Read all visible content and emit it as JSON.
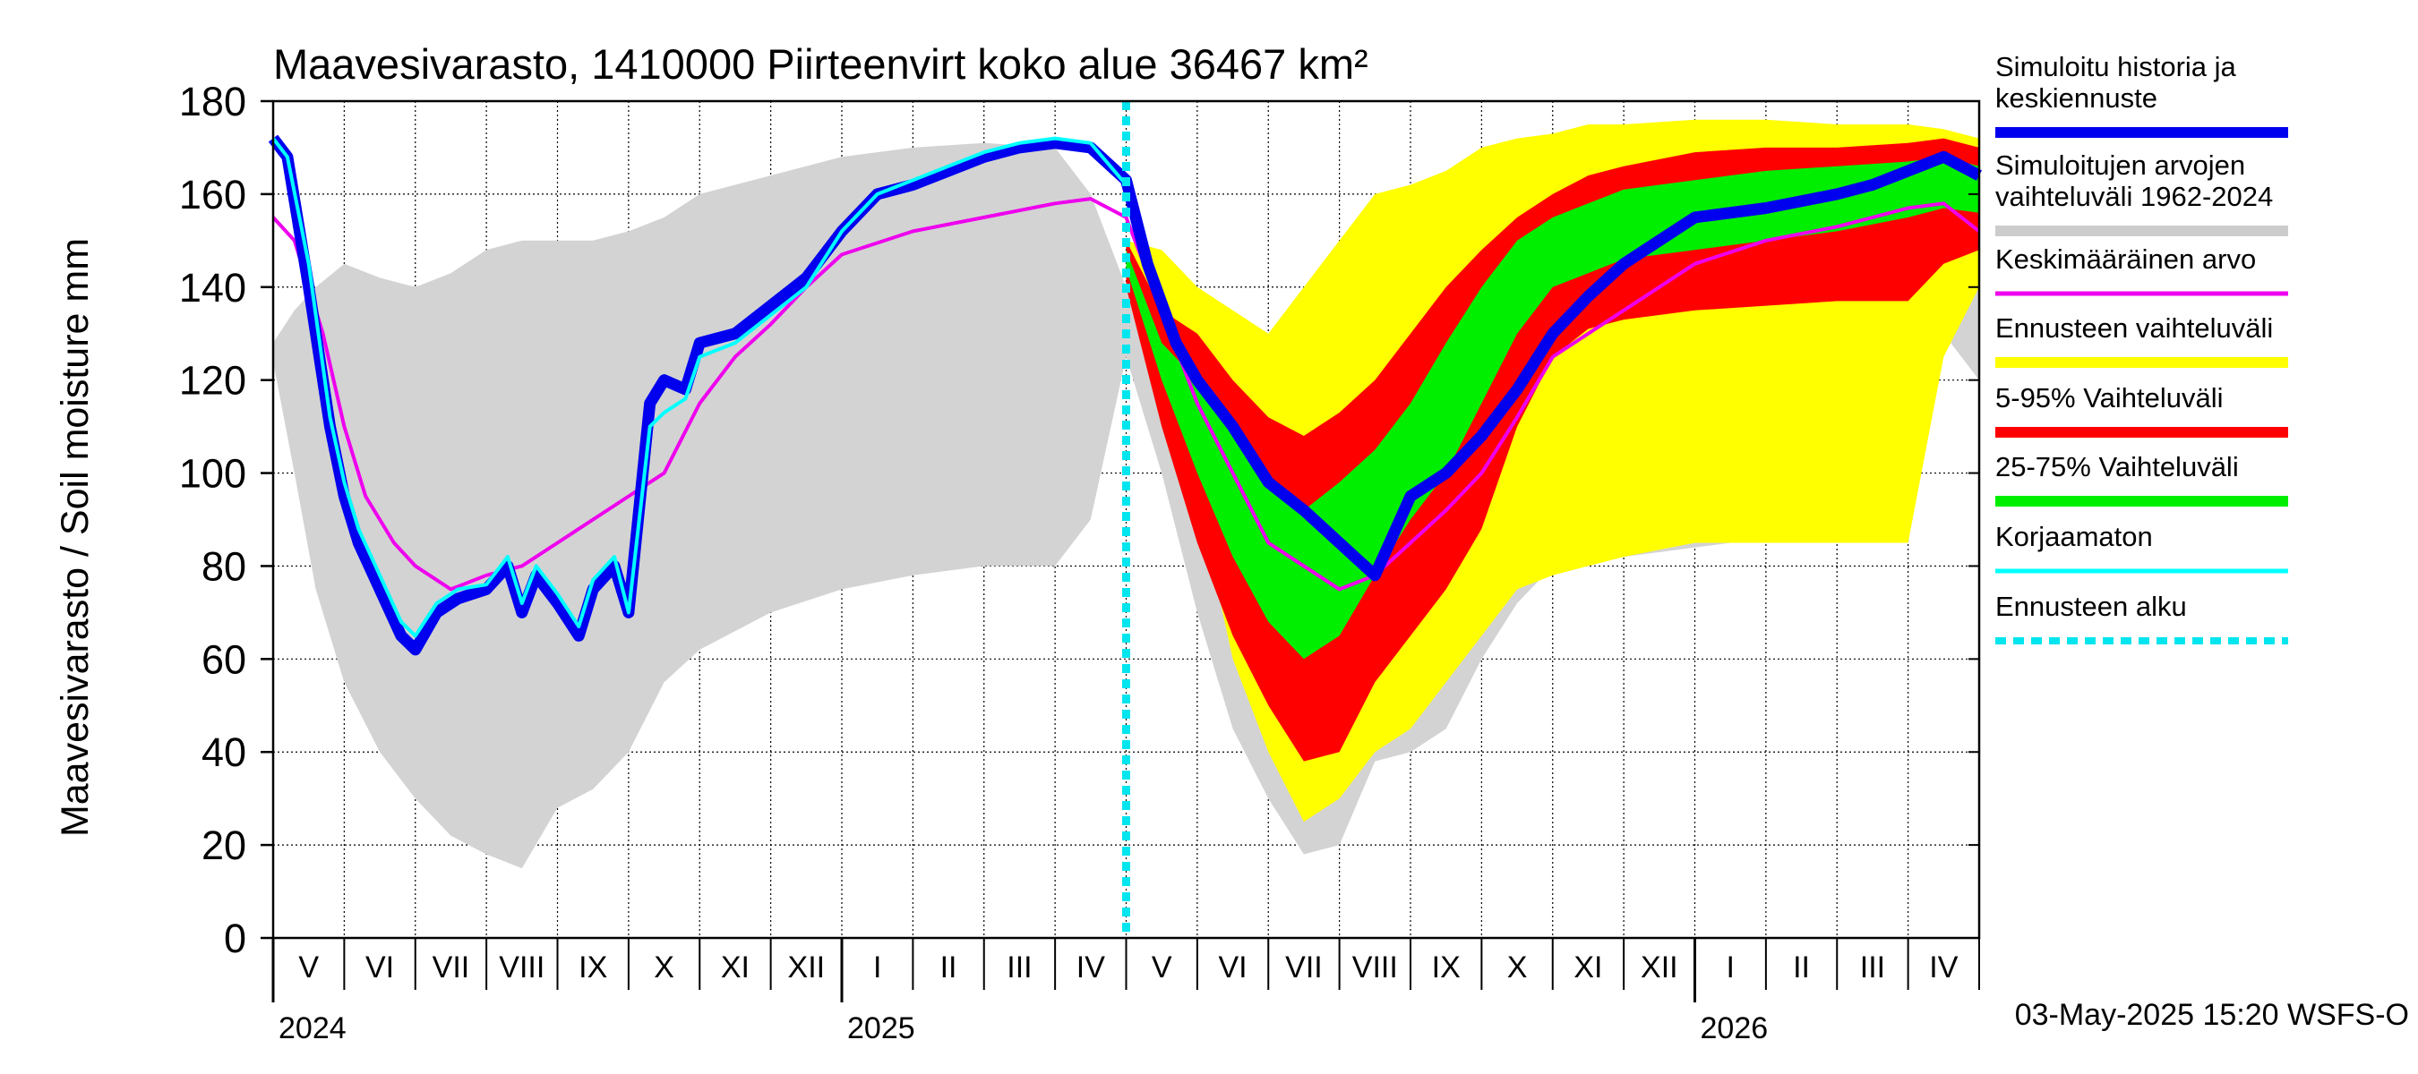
{
  "chart_data": {
    "type": "area",
    "title": "Maavesivarasto, 1410000 Piirteenvirt koko alue 36467 km²",
    "ylabel": "Maavesivarasto / Soil moisture   mm",
    "ylim": [
      0,
      180
    ],
    "yticks": [
      0,
      20,
      40,
      60,
      80,
      100,
      120,
      140,
      160,
      180
    ],
    "xlim": [
      0,
      24
    ],
    "month_labels": [
      "V",
      "VI",
      "VII",
      "VIII",
      "IX",
      "X",
      "XI",
      "XII",
      "I",
      "II",
      "III",
      "IV",
      "V",
      "VI",
      "VII",
      "VIII",
      "IX",
      "X",
      "XI",
      "XII",
      "I",
      "II",
      "III",
      "IV"
    ],
    "year_labels": [
      {
        "label": "2024",
        "at": 0
      },
      {
        "label": "2025",
        "at": 8
      },
      {
        "label": "2026",
        "at": 20
      }
    ],
    "forecast_start": 12,
    "grid": true,
    "legend_position": "right",
    "legend": [
      {
        "label": "Simuloitu historia ja keskiennuste",
        "color": "#0000ee",
        "kind": "line-thick"
      },
      {
        "label": "Simuloitujen arvojen vaihteluväli 1962-2024",
        "color": "#cccccc",
        "kind": "line-thick"
      },
      {
        "label": "Keskimääräinen arvo",
        "color": "#ee00ee",
        "kind": "line"
      },
      {
        "label": "Ennusteen vaihteluväli",
        "color": "#ffff00",
        "kind": "line-thick"
      },
      {
        "label": "5-95% Vaihteluväli",
        "color": "#ff0000",
        "kind": "line-thick"
      },
      {
        "label": "25-75% Vaihteluväli",
        "color": "#00ee00",
        "kind": "line-thick"
      },
      {
        "label": "Korjaamaton",
        "color": "#00ffff",
        "kind": "line"
      },
      {
        "label": "Ennusteen alku",
        "color": "#00e5ee",
        "kind": "dashed"
      }
    ],
    "series": {
      "history_range": {
        "name": "Simuloitujen arvojen vaihteluväli 1962-2024",
        "color": "#d3d3d3",
        "x": [
          0,
          0.3,
          0.6,
          1,
          1.5,
          2,
          2.5,
          3,
          3.5,
          4,
          4.5,
          5,
          5.5,
          6,
          7,
          8,
          9,
          10,
          11,
          11.5,
          12,
          12.5,
          13,
          13.5,
          14,
          14.5,
          15,
          15.5,
          16,
          16.5,
          17,
          17.5,
          18,
          19,
          20,
          21,
          22,
          22.5,
          23,
          23.5,
          24
        ],
        "upper": [
          128,
          135,
          140,
          145,
          142,
          140,
          143,
          148,
          150,
          150,
          150,
          152,
          155,
          160,
          164,
          168,
          170,
          171,
          170,
          160,
          140,
          140,
          135,
          120,
          115,
          118,
          125,
          130,
          140,
          150,
          155,
          160,
          164,
          167,
          168,
          169,
          169,
          168,
          167,
          167,
          168
        ],
        "lower": [
          124,
          100,
          75,
          55,
          40,
          30,
          22,
          18,
          15,
          28,
          32,
          40,
          55,
          62,
          70,
          75,
          78,
          80,
          80,
          90,
          125,
          100,
          70,
          45,
          30,
          18,
          20,
          38,
          40,
          45,
          60,
          72,
          80,
          82,
          84,
          86,
          88,
          92,
          110,
          130,
          120
        ]
      },
      "forecast_range": {
        "name": "Ennusteen vaihteluväli",
        "color": "#ffff00",
        "x": [
          12,
          12.5,
          13,
          13.5,
          14,
          14.5,
          15,
          15.5,
          16,
          16.5,
          17,
          17.5,
          18,
          18.5,
          19,
          20,
          21,
          22,
          23,
          23.5,
          24
        ],
        "upper": [
          150,
          148,
          140,
          135,
          130,
          140,
          150,
          160,
          162,
          165,
          170,
          172,
          173,
          175,
          175,
          176,
          176,
          175,
          175,
          174,
          172
        ],
        "lower": [
          143,
          120,
          95,
          60,
          40,
          25,
          30,
          40,
          45,
          55,
          65,
          75,
          78,
          80,
          82,
          85,
          85,
          85,
          85,
          125,
          140
        ]
      },
      "p5_95": {
        "name": "5-95% Vaihteluväli",
        "color": "#ff0000",
        "x": [
          12,
          12.5,
          13,
          13.5,
          14,
          14.5,
          15,
          15.5,
          16,
          16.5,
          17,
          17.5,
          18,
          18.5,
          19,
          20,
          21,
          22,
          23,
          23.5,
          24
        ],
        "upper": [
          150,
          135,
          130,
          120,
          112,
          108,
          113,
          120,
          130,
          140,
          148,
          155,
          160,
          164,
          166,
          169,
          170,
          170,
          171,
          172,
          170
        ],
        "lower": [
          140,
          110,
          85,
          65,
          50,
          38,
          40,
          55,
          65,
          75,
          88,
          110,
          125,
          131,
          133,
          135,
          136,
          137,
          137,
          145,
          148
        ]
      },
      "p25_75": {
        "name": "25-75% Vaihteluväli",
        "color": "#00ee00",
        "x": [
          12,
          12.5,
          13,
          13.5,
          14,
          14.5,
          15,
          15.5,
          16,
          16.5,
          17,
          17.5,
          18,
          18.5,
          19,
          20,
          21,
          22,
          23,
          23.5,
          24
        ],
        "upper": [
          148,
          128,
          120,
          108,
          98,
          92,
          98,
          105,
          115,
          128,
          140,
          150,
          155,
          158,
          161,
          163,
          165,
          166,
          167,
          168,
          166
        ],
        "lower": [
          144,
          120,
          100,
          82,
          68,
          60,
          65,
          78,
          90,
          100,
          115,
          130,
          140,
          143,
          146,
          148,
          150,
          152,
          155,
          157,
          156
        ]
      },
      "simulated": {
        "name": "Simuloitu historia ja keskiennuste",
        "color": "#0000ee",
        "x": [
          0,
          0.2,
          0.5,
          0.8,
          1,
          1.2,
          1.5,
          1.8,
          2,
          2.3,
          2.6,
          3,
          3.3,
          3.5,
          3.7,
          4,
          4.3,
          4.5,
          4.8,
          5,
          5.3,
          5.5,
          5.8,
          6,
          6.5,
          7,
          7.5,
          8,
          8.5,
          9,
          9.5,
          10,
          10.5,
          11,
          11.5,
          12,
          12.3,
          12.7,
          13,
          13.5,
          14,
          14.5,
          15,
          15.5,
          16,
          16.5,
          17,
          17.5,
          18,
          18.5,
          19,
          19.5,
          20,
          21,
          22,
          22.5,
          23,
          23.5,
          24
        ],
        "y": [
          172,
          168,
          140,
          110,
          95,
          85,
          75,
          65,
          62,
          70,
          73,
          75,
          80,
          70,
          78,
          72,
          65,
          75,
          80,
          70,
          115,
          120,
          118,
          128,
          130,
          136,
          142,
          152,
          160,
          162,
          165,
          168,
          170,
          171,
          170,
          163,
          145,
          128,
          120,
          110,
          98,
          92,
          85,
          78,
          95,
          100,
          108,
          118,
          130,
          138,
          145,
          150,
          155,
          157,
          160,
          162,
          165,
          168,
          164
        ]
      },
      "uncorrected": {
        "name": "Korjaamaton",
        "color": "#00ffff",
        "x": [
          0,
          0.2,
          0.5,
          0.8,
          1,
          1.2,
          1.5,
          1.8,
          2,
          2.3,
          2.6,
          3,
          3.3,
          3.5,
          3.7,
          4,
          4.3,
          4.5,
          4.8,
          5,
          5.3,
          5.5,
          5.8,
          6,
          6.5,
          7,
          7.5,
          8,
          8.5,
          9,
          9.5,
          10,
          10.5,
          11,
          11.5,
          12
        ],
        "y": [
          172,
          168,
          145,
          112,
          98,
          88,
          78,
          68,
          65,
          72,
          75,
          76,
          82,
          72,
          80,
          74,
          67,
          77,
          82,
          70,
          110,
          113,
          116,
          125,
          128,
          134,
          140,
          152,
          160,
          163,
          166,
          169,
          171,
          172,
          171,
          162
        ]
      },
      "mean": {
        "name": "Keskimääräinen arvo",
        "color": "#ee00ee",
        "x": [
          0,
          0.3,
          0.7,
          1,
          1.3,
          1.7,
          2,
          2.5,
          3,
          3.5,
          4,
          4.5,
          5,
          5.5,
          6,
          6.5,
          7,
          7.5,
          8,
          9,
          10,
          11,
          11.5,
          12,
          12.5,
          13,
          13.5,
          14,
          14.5,
          15,
          15.5,
          16,
          16.5,
          17,
          17.5,
          18,
          19,
          20,
          21,
          22,
          23,
          23.5,
          24
        ],
        "y": [
          155,
          150,
          130,
          110,
          95,
          85,
          80,
          75,
          78,
          80,
          85,
          90,
          95,
          100,
          115,
          125,
          132,
          140,
          147,
          152,
          155,
          158,
          159,
          155,
          135,
          115,
          100,
          85,
          80,
          75,
          78,
          85,
          92,
          100,
          112,
          125,
          135,
          145,
          150,
          153,
          157,
          158,
          152
        ]
      }
    }
  },
  "footer_timestamp": "03-May-2025 15:20 WSFS-O"
}
